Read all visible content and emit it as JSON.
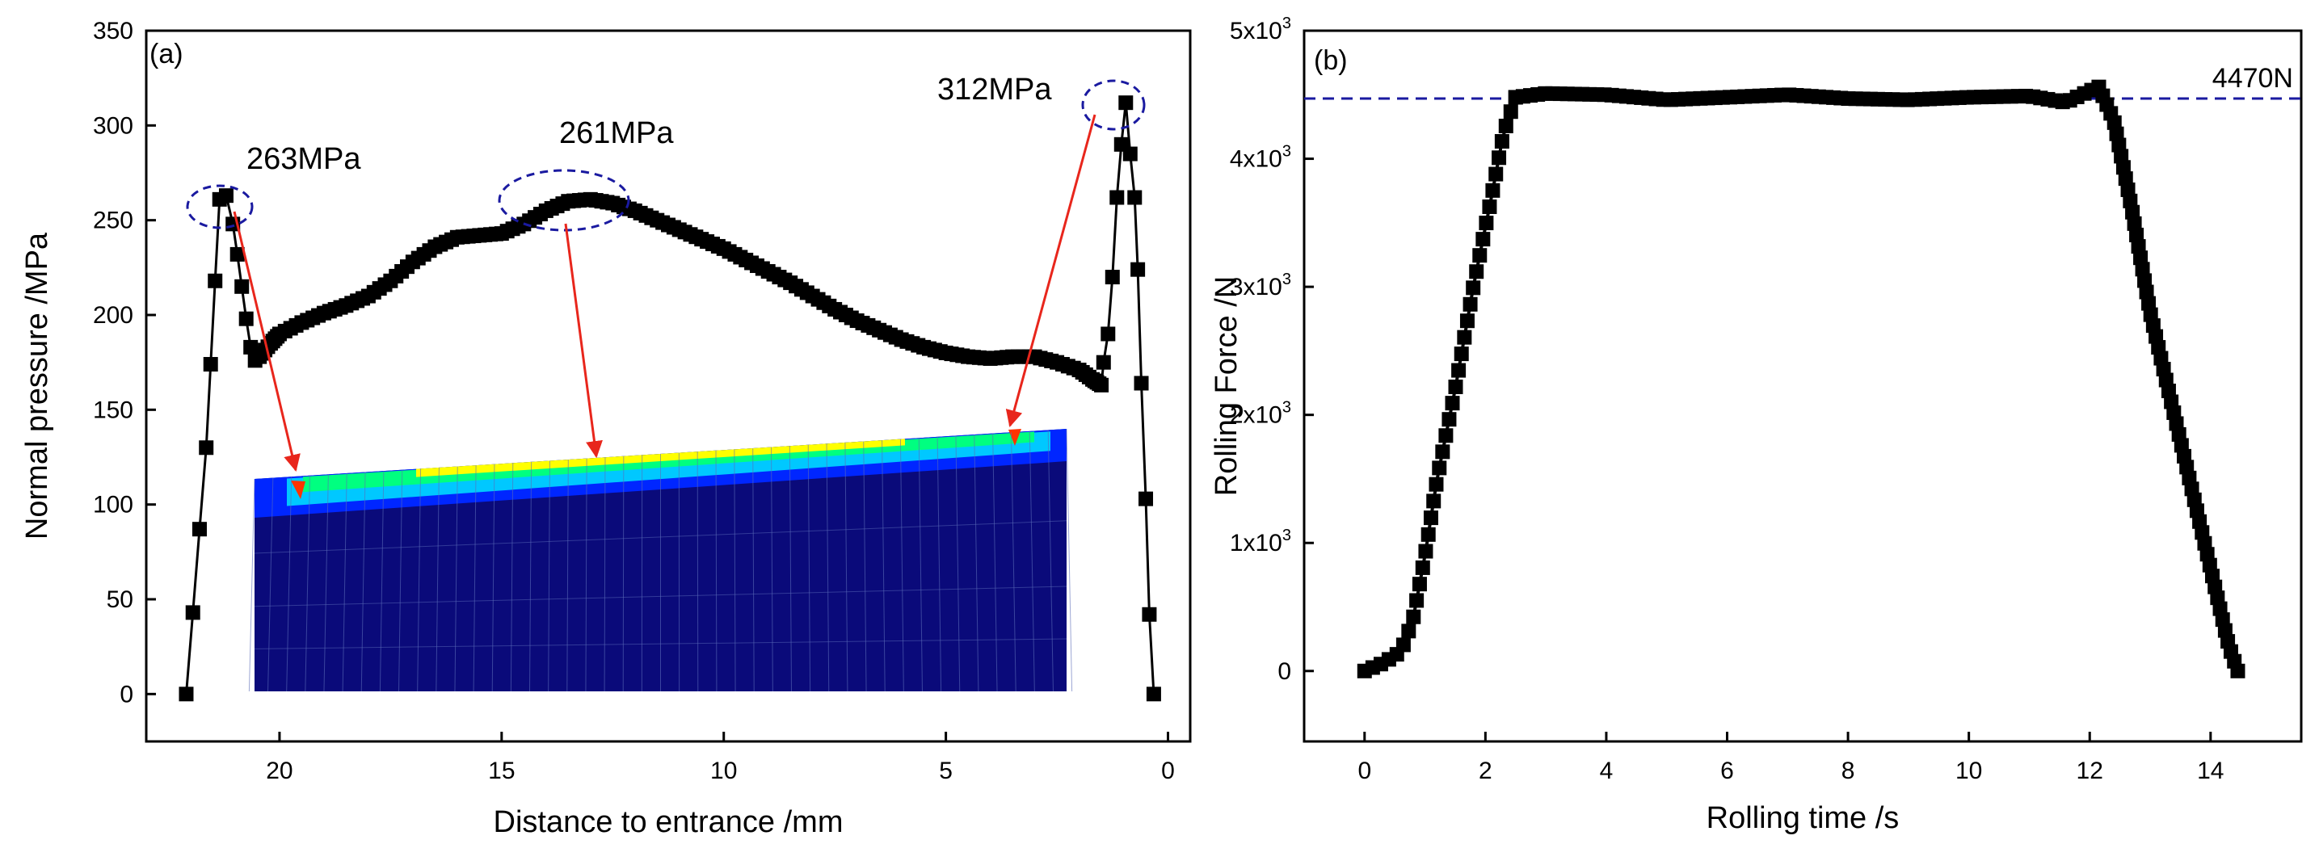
{
  "chart_data": [
    {
      "type": "scatter",
      "panel_label": "(a)",
      "xlabel": "Distance to entrance /mm",
      "ylabel": "Normal pressure /MPa",
      "xlim": [
        23,
        -0.5
      ],
      "ylim": [
        -25,
        350
      ],
      "x_ticks": [
        20,
        15,
        10,
        5,
        0
      ],
      "y_ticks": [
        0,
        50,
        100,
        150,
        200,
        250,
        300,
        350
      ],
      "series_color": "#000000",
      "series": [
        {
          "name": "",
          "points": [
            [
              22.1,
              0
            ],
            [
              21.95,
              43
            ],
            [
              21.8,
              87
            ],
            [
              21.65,
              130
            ],
            [
              21.55,
              174
            ],
            [
              21.45,
              218
            ],
            [
              21.35,
              261
            ],
            [
              21.2,
              263
            ],
            [
              21.05,
              248
            ],
            [
              20.95,
              232
            ],
            [
              20.85,
              215
            ],
            [
              20.75,
              198
            ],
            [
              20.65,
              183
            ],
            [
              20.55,
              176
            ],
            [
              20.45,
              178
            ],
            [
              20.2,
              185
            ],
            [
              20.0,
              190
            ],
            [
              19.5,
              196
            ],
            [
              19.0,
              201
            ],
            [
              18.5,
              205
            ],
            [
              18.0,
              210
            ],
            [
              17.5,
              218
            ],
            [
              17.0,
              228
            ],
            [
              16.5,
              236
            ],
            [
              16.0,
              241
            ],
            [
              15.5,
              242
            ],
            [
              15.0,
              243
            ],
            [
              14.5,
              248
            ],
            [
              14.0,
              255
            ],
            [
              13.5,
              260
            ],
            [
              13.0,
              261
            ],
            [
              12.5,
              259
            ],
            [
              12.0,
              255
            ],
            [
              11.5,
              250
            ],
            [
              11.0,
              245
            ],
            [
              10.5,
              240
            ],
            [
              10.0,
              235
            ],
            [
              9.5,
              229
            ],
            [
              9.0,
              223
            ],
            [
              8.5,
              217
            ],
            [
              8.0,
              210
            ],
            [
              7.5,
              203
            ],
            [
              7.0,
              197
            ],
            [
              6.5,
              192
            ],
            [
              6.0,
              187
            ],
            [
              5.5,
              183
            ],
            [
              5.0,
              180
            ],
            [
              4.5,
              178
            ],
            [
              4.0,
              177
            ],
            [
              3.5,
              178
            ],
            [
              3.0,
              178
            ],
            [
              2.5,
              175
            ],
            [
              2.0,
              171
            ],
            [
              1.7,
              166
            ],
            [
              1.5,
              163
            ],
            [
              1.45,
              175
            ],
            [
              1.35,
              190
            ],
            [
              1.25,
              220
            ],
            [
              1.15,
              262
            ],
            [
              1.05,
              290
            ],
            [
              0.95,
              312
            ],
            [
              0.85,
              285
            ],
            [
              0.75,
              262
            ],
            [
              0.68,
              224
            ],
            [
              0.6,
              164
            ],
            [
              0.5,
              103
            ],
            [
              0.42,
              42
            ],
            [
              0.32,
              0
            ]
          ]
        }
      ],
      "annotations": [
        {
          "text": "263MPa",
          "x": 21.2,
          "y": 263
        },
        {
          "text": "261MPa",
          "x": 13.2,
          "y": 261
        },
        {
          "text": "312MPa",
          "x": 0.95,
          "y": 312
        }
      ],
      "inset": "finite element contour map of rolled strip cross-section",
      "inset_colors": [
        "#0a0a7a",
        "#0026ff",
        "#00c8ff",
        "#00ff80",
        "#ffff00",
        "#ff3300"
      ],
      "grid": false,
      "marker": "square"
    },
    {
      "type": "scatter",
      "panel_label": "(b)",
      "xlabel": "Rolling time /s",
      "ylabel": "Rolling Force  /N",
      "xlim": [
        -1,
        15.5
      ],
      "ylim": [
        -550,
        5000
      ],
      "x_ticks": [
        0,
        2,
        4,
        6,
        8,
        10,
        12,
        14
      ],
      "y_ticks": [
        {
          "value": 0,
          "base": "0",
          "exp": ""
        },
        {
          "value": 1000,
          "base": "1x10",
          "exp": "3"
        },
        {
          "value": 2000,
          "base": "2x10",
          "exp": "3"
        },
        {
          "value": 3000,
          "base": "3x10",
          "exp": "3"
        },
        {
          "value": 4000,
          "base": "4x10",
          "exp": "3"
        },
        {
          "value": 5000,
          "base": "5x10",
          "exp": "3"
        }
      ],
      "reference_line": {
        "value": 4470,
        "label": "4470N",
        "color": "#1a1aa0",
        "style": "dashed"
      },
      "series_color": "#000000",
      "series": [
        {
          "name": "",
          "segments": [
            {
              "points": [
                [
                  0,
                  0
                ],
                [
                  0.3,
                  60
                ],
                [
                  0.6,
                  150
                ],
                [
                  0.8,
                  400
                ],
                [
                  1.0,
                  900
                ],
                [
                  1.2,
                  1500
                ],
                [
                  1.5,
                  2200
                ],
                [
                  1.8,
                  3000
                ],
                [
                  2.1,
                  3700
                ],
                [
                  2.3,
                  4200
                ],
                [
                  2.5,
                  4480
                ]
              ],
              "count": 40
            },
            {
              "points": [
                [
                  2.5,
                  4480
                ],
                [
                  3.0,
                  4510
                ],
                [
                  4.0,
                  4500
                ],
                [
                  5.0,
                  4460
                ],
                [
                  6.0,
                  4480
                ],
                [
                  7.0,
                  4500
                ],
                [
                  8.0,
                  4470
                ],
                [
                  9.0,
                  4460
                ],
                [
                  10.0,
                  4480
                ],
                [
                  11.0,
                  4490
                ],
                [
                  11.6,
                  4440
                ],
                [
                  12.0,
                  4530
                ],
                [
                  12.15,
                  4560
                ]
              ],
              "count": 80
            },
            {
              "points": [
                [
                  12.15,
                  4560
                ],
                [
                  12.4,
                  4300
                ],
                [
                  12.7,
                  3600
                ],
                [
                  13.0,
                  2800
                ],
                [
                  13.3,
                  2200
                ],
                [
                  13.6,
                  1600
                ],
                [
                  13.9,
                  1000
                ],
                [
                  14.1,
                  600
                ],
                [
                  14.3,
                  200
                ],
                [
                  14.45,
                  0
                ]
              ],
              "count": 55
            }
          ]
        }
      ],
      "grid": false,
      "marker": "square"
    }
  ]
}
